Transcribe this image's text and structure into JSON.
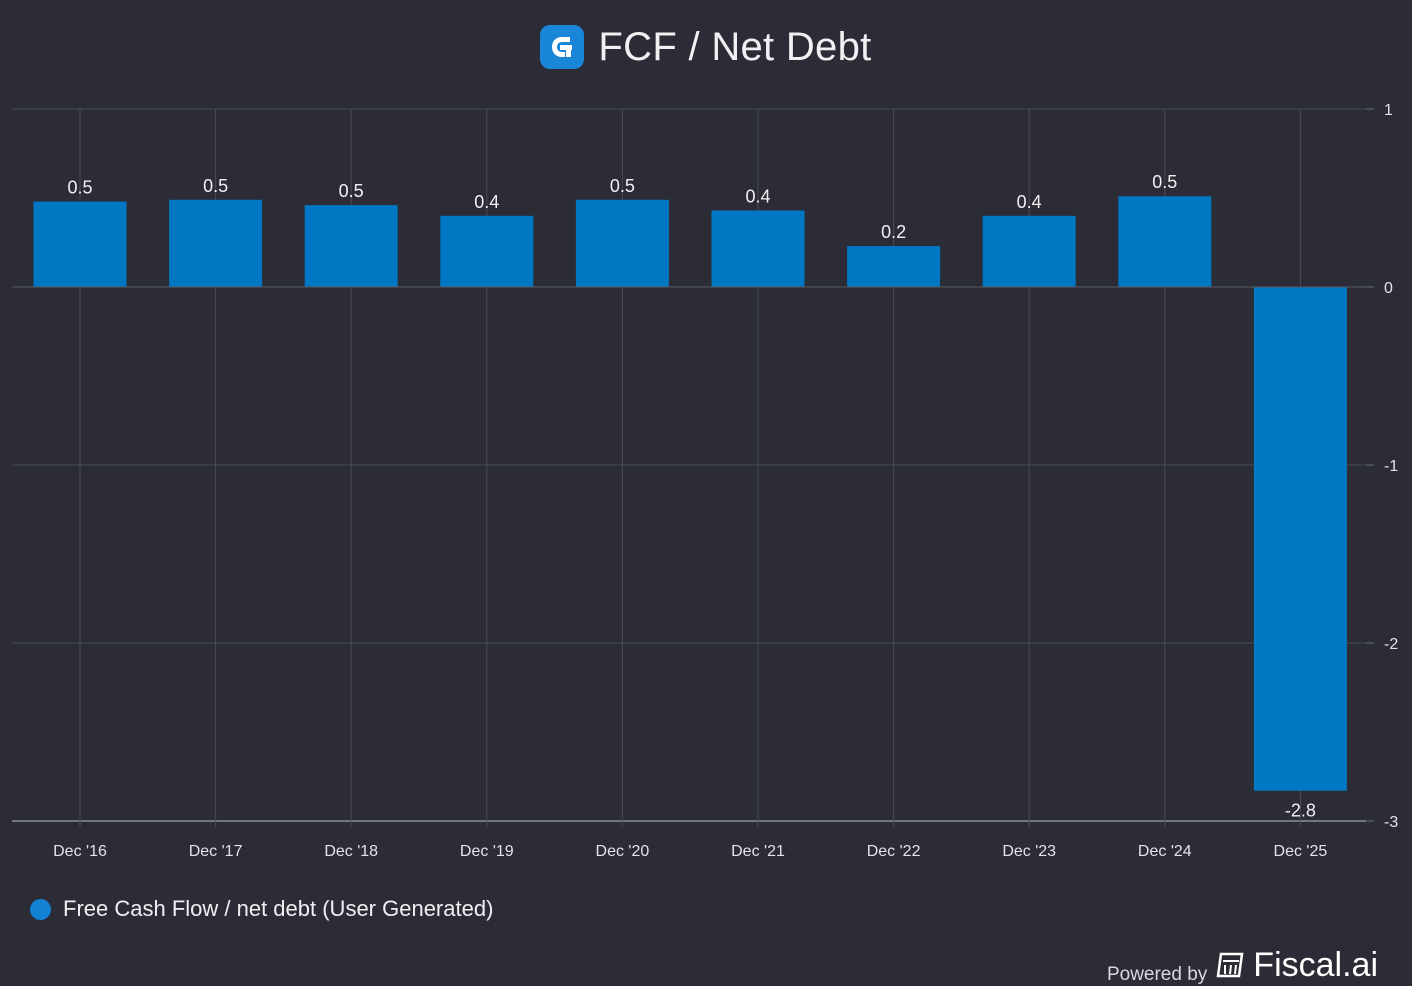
{
  "header": {
    "title": "FCF / Net Debt",
    "logo_icon": "fiscal-logo-icon"
  },
  "chart_data": {
    "type": "bar",
    "title": "FCF / Net Debt",
    "categories": [
      "Dec '16",
      "Dec '17",
      "Dec '18",
      "Dec '19",
      "Dec '20",
      "Dec '21",
      "Dec '22",
      "Dec '23",
      "Dec '24",
      "Dec '25"
    ],
    "series": [
      {
        "name": "Free Cash Flow / net debt (User Generated)",
        "values": [
          0.48,
          0.49,
          0.46,
          0.4,
          0.49,
          0.43,
          0.23,
          0.4,
          0.51,
          -2.83
        ],
        "labels": [
          "0.5",
          "0.5",
          "0.5",
          "0.4",
          "0.5",
          "0.4",
          "0.2",
          "0.4",
          "0.5",
          "-2.8"
        ],
        "color": "#0077c2"
      }
    ],
    "ylim": [
      -3,
      1
    ],
    "yticks": [
      1,
      0,
      -1,
      -2,
      -3
    ],
    "ytick_labels": [
      "1",
      "0",
      "-1",
      "-2",
      "-3"
    ],
    "yaxis_side": "right",
    "grid": true,
    "legend_position": "bottom-left"
  },
  "legend": {
    "label": "Free Cash Flow / net debt (User Generated)",
    "color": "#1482d4"
  },
  "footer": {
    "powered_by": "Powered by",
    "brand": "Fiscal.ai",
    "brand_icon": "fiscal-brand-icon"
  }
}
